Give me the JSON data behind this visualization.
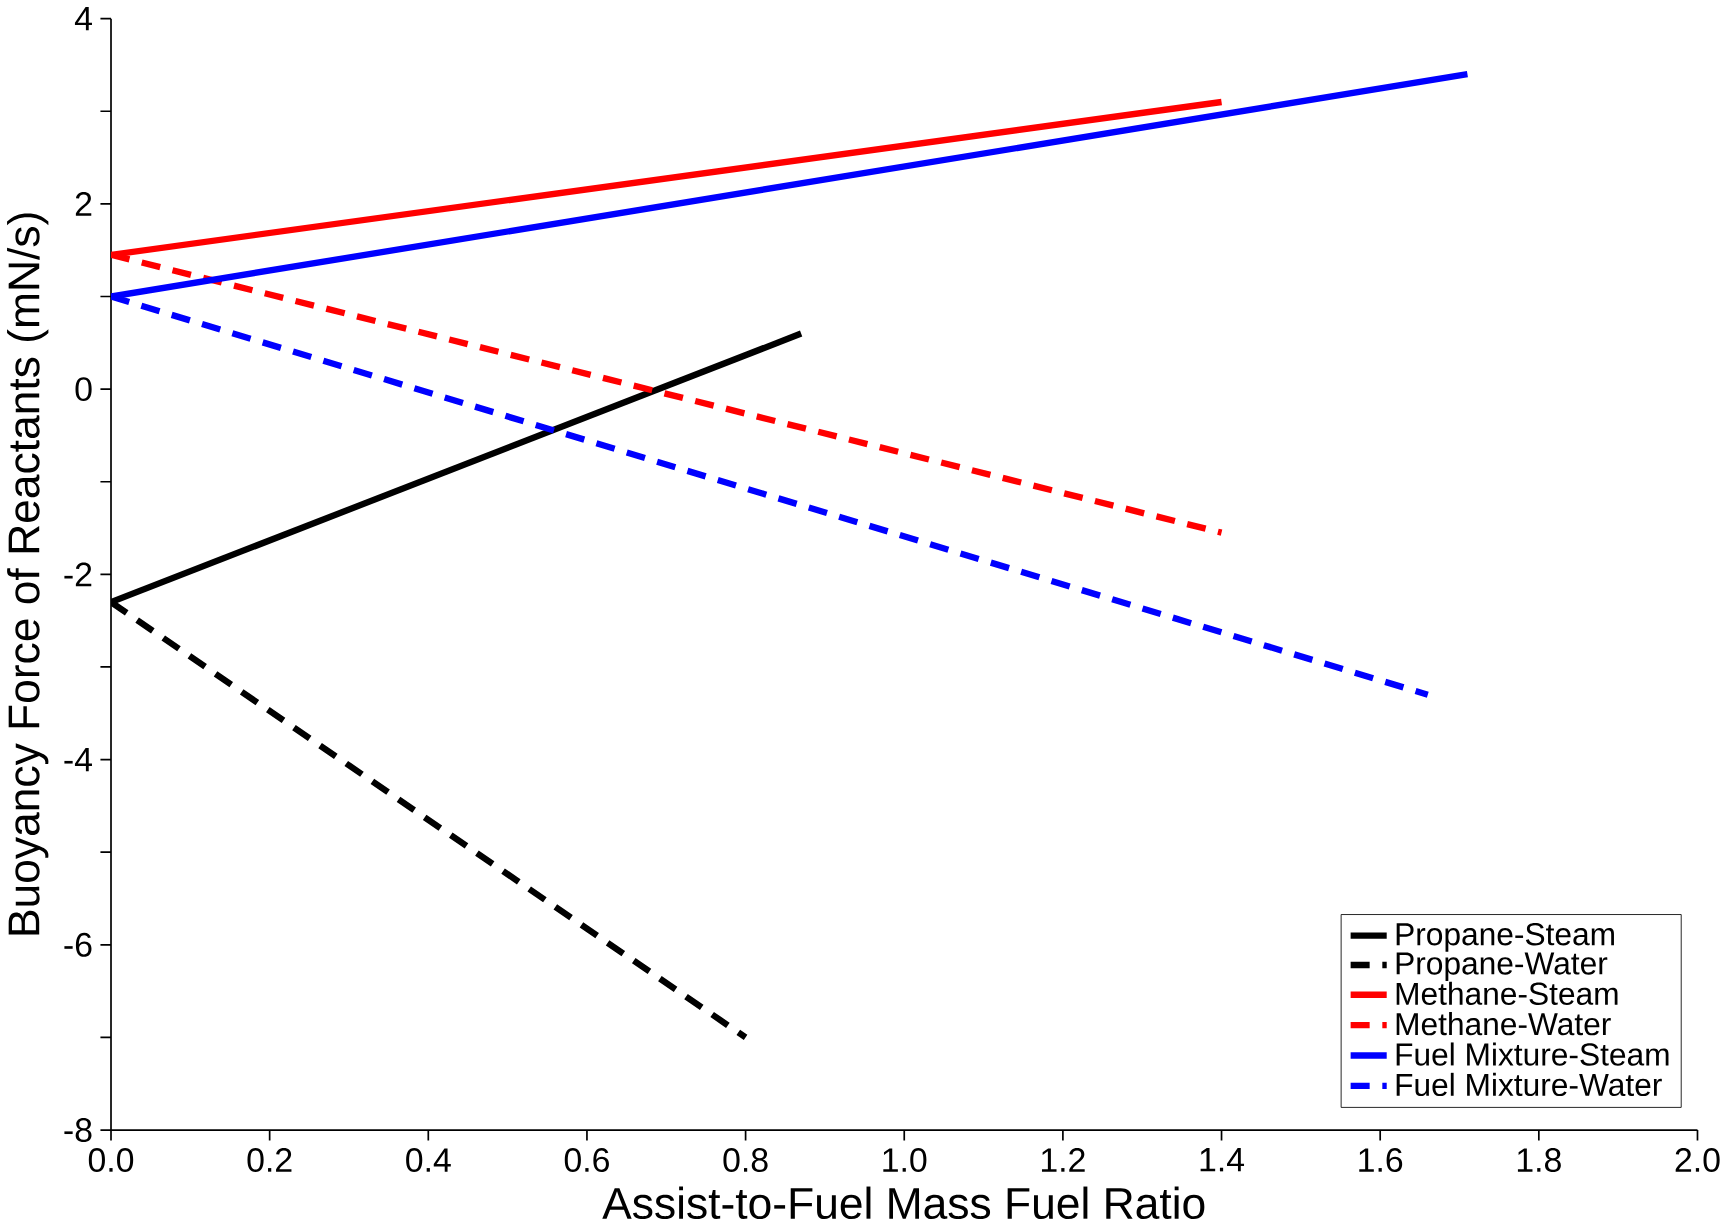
{
  "chart_data": {
    "type": "line",
    "xlabel": "Assist-to-Fuel Mass Fuel Ratio",
    "ylabel": "Buoyancy Force of Reactants (mN/s)",
    "xlim": [
      0,
      2
    ],
    "ylim": [
      -8,
      4
    ],
    "xticks": [
      {
        "value": 0,
        "label": "0.0"
      },
      0.2,
      0.4,
      0.6,
      0.8,
      {
        "value": 1,
        "label": "1.0"
      },
      1.2,
      1.4,
      1.6,
      1.8,
      {
        "value": 2,
        "label": "2.0"
      }
    ],
    "yticks": [
      -8,
      {
        "value": -7,
        "label": null
      },
      -6,
      {
        "value": -5,
        "label": null
      },
      -4,
      {
        "value": -3,
        "label": null
      },
      -2,
      {
        "value": -1,
        "label": null
      },
      0,
      {
        "value": 1,
        "label": null
      },
      2,
      {
        "value": 3,
        "label": null
      },
      4
    ],
    "legend": "bottom right",
    "grid": false,
    "marker": "none",
    "series": [
      {
        "name": "Propane-Steam",
        "color": "#000000",
        "line_style": "solid",
        "x": [
          0,
          0.87
        ],
        "values": [
          -2.3,
          0.6
        ]
      },
      {
        "name": "Propane-Water",
        "color": "#000000",
        "line_style": "dashed",
        "x": [
          0,
          0.8
        ],
        "values": [
          -2.3,
          -7.0
        ]
      },
      {
        "name": "Methane-Steam",
        "color": "#ff0000",
        "line_style": "solid",
        "x": [
          0,
          1.4
        ],
        "values": [
          1.45,
          3.1
        ]
      },
      {
        "name": "Methane-Water",
        "color": "#ff0000",
        "line_style": "dashed",
        "x": [
          0,
          1.4
        ],
        "values": [
          1.45,
          -1.55
        ]
      },
      {
        "name": "Fuel Mixture-Steam",
        "color": "#0000ff",
        "line_style": "solid",
        "x": [
          0,
          1.71
        ],
        "values": [
          1.0,
          3.4
        ]
      },
      {
        "name": "Fuel Mixture-Water",
        "color": "#0000ff",
        "line_style": "dashed",
        "x": [
          0,
          1.66
        ],
        "values": [
          1.0,
          -3.3
        ]
      }
    ]
  }
}
